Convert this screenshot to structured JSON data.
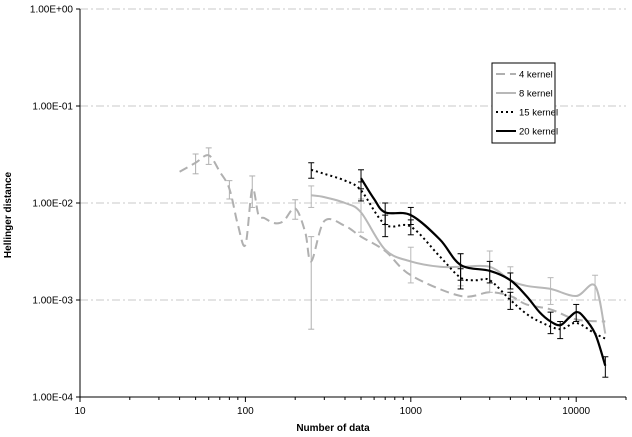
{
  "chart_data": {
    "type": "line",
    "title": "",
    "xlabel": "Number of data",
    "ylabel": "Hellinger distance",
    "x_scale": "log",
    "y_scale": "log",
    "xlim": [
      10,
      20000
    ],
    "ylim": [
      0.0001,
      1
    ],
    "x_ticks": [
      10,
      100,
      1000,
      10000
    ],
    "x_tick_labels": [
      "10",
      "100",
      "1000",
      "10000"
    ],
    "y_ticks": [
      1,
      0.1,
      0.01,
      0.001,
      0.0001
    ],
    "y_tick_labels": [
      "1.00E+00",
      "1.00E-01",
      "1.00E-02",
      "1.00E-03",
      "1.00E-04"
    ],
    "grid": "horizontal dash-dot",
    "legend_position": "top-right",
    "series": [
      {
        "name": "4 kernel",
        "color": "#b0b0b0",
        "dash": "long-dash",
        "points": [
          [
            40,
            0.021
          ],
          [
            50,
            0.026
          ],
          [
            60,
            0.031
          ],
          [
            70,
            0.021
          ],
          [
            80,
            0.014
          ],
          [
            90,
            0.006
          ],
          [
            100,
            0.0037
          ],
          [
            110,
            0.014
          ],
          [
            120,
            0.0075
          ],
          [
            130,
            0.007
          ],
          [
            150,
            0.0062
          ],
          [
            170,
            0.0065
          ],
          [
            200,
            0.0088
          ],
          [
            230,
            0.005
          ],
          [
            250,
            0.0025
          ],
          [
            300,
            0.0065
          ],
          [
            400,
            0.0058
          ],
          [
            500,
            0.0045
          ],
          [
            700,
            0.0032
          ],
          [
            1000,
            0.0018
          ],
          [
            2000,
            0.0011
          ],
          [
            3000,
            0.0012
          ],
          [
            4000,
            0.0011
          ],
          [
            5000,
            0.0009
          ],
          [
            7000,
            0.0008
          ],
          [
            10000,
            0.00063
          ],
          [
            15000,
            0.0006
          ]
        ],
        "errors": [
          [
            50,
            0.006
          ],
          [
            60,
            0.006
          ],
          [
            80,
            0.003
          ],
          [
            110,
            0.005
          ],
          [
            200,
            0.002
          ],
          [
            250,
            0.002
          ]
        ]
      },
      {
        "name": "8 kernel",
        "color": "#b8b8b8",
        "dash": "solid",
        "points": [
          [
            250,
            0.012
          ],
          [
            300,
            0.0115
          ],
          [
            400,
            0.01
          ],
          [
            500,
            0.008
          ],
          [
            700,
            0.0033
          ],
          [
            1000,
            0.0025
          ],
          [
            1500,
            0.0022
          ],
          [
            2000,
            0.0022
          ],
          [
            3000,
            0.0022
          ],
          [
            4000,
            0.0016
          ],
          [
            5000,
            0.0014
          ],
          [
            7000,
            0.0013
          ],
          [
            10000,
            0.0011
          ],
          [
            13000,
            0.0014
          ],
          [
            15000,
            0.00045
          ]
        ],
        "errors": [
          [
            250,
            0.003
          ],
          [
            500,
            0.003
          ],
          [
            1000,
            0.001
          ],
          [
            2000,
            0.0008
          ],
          [
            3000,
            0.001
          ],
          [
            4000,
            0.0006
          ],
          [
            7000,
            0.0004
          ],
          [
            13000,
            0.0004
          ]
        ]
      },
      {
        "name": "15 kernel",
        "color": "#000000",
        "dash": "dotted",
        "points": [
          [
            250,
            0.022
          ],
          [
            300,
            0.02
          ],
          [
            400,
            0.017
          ],
          [
            500,
            0.0135
          ],
          [
            700,
            0.006
          ],
          [
            1000,
            0.0057
          ],
          [
            1500,
            0.0028
          ],
          [
            2000,
            0.0017
          ],
          [
            2500,
            0.0016
          ],
          [
            3000,
            0.0016
          ],
          [
            4000,
            0.001
          ],
          [
            5000,
            0.00072
          ],
          [
            6000,
            0.0006
          ],
          [
            8000,
            0.0005
          ],
          [
            10000,
            0.00058
          ],
          [
            13000,
            0.00045
          ],
          [
            15000,
            0.0004
          ]
        ],
        "errors": [
          [
            250,
            0.004
          ],
          [
            500,
            0.003
          ],
          [
            700,
            0.0015
          ],
          [
            1000,
            0.001
          ],
          [
            2000,
            0.0004
          ],
          [
            4000,
            0.0002
          ],
          [
            8000,
            0.0001
          ]
        ]
      },
      {
        "name": "20 kernel",
        "color": "#000000",
        "dash": "solid",
        "points": [
          [
            500,
            0.018
          ],
          [
            600,
            0.011
          ],
          [
            700,
            0.008
          ],
          [
            1000,
            0.0075
          ],
          [
            1500,
            0.0042
          ],
          [
            2000,
            0.0023
          ],
          [
            3000,
            0.002
          ],
          [
            4000,
            0.0016
          ],
          [
            5000,
            0.0011
          ],
          [
            6000,
            0.00075
          ],
          [
            7000,
            0.0006
          ],
          [
            8000,
            0.00055
          ],
          [
            9000,
            0.00065
          ],
          [
            10000,
            0.00075
          ],
          [
            11000,
            0.00068
          ],
          [
            13000,
            0.00045
          ],
          [
            15000,
            0.00021
          ]
        ],
        "errors": [
          [
            500,
            0.004
          ],
          [
            700,
            0.002
          ],
          [
            1000,
            0.0015
          ],
          [
            2000,
            0.0007
          ],
          [
            3000,
            0.0005
          ],
          [
            4000,
            0.0003
          ],
          [
            7000,
            0.00015
          ],
          [
            10000,
            0.00015
          ],
          [
            15000,
            5e-05
          ]
        ]
      }
    ]
  }
}
